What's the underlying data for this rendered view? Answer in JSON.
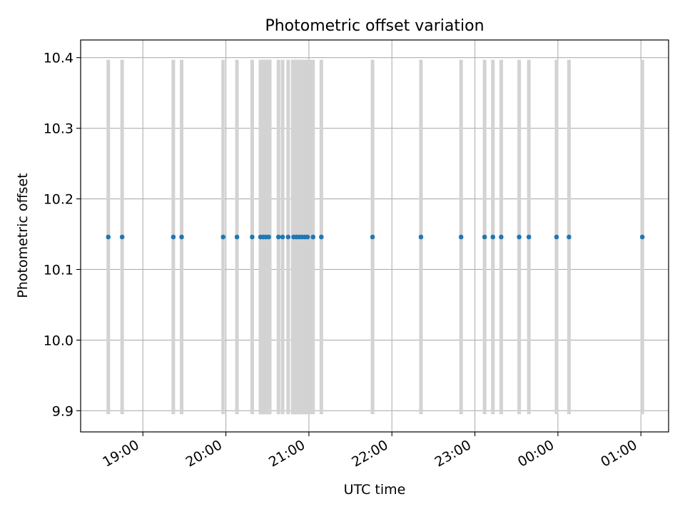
{
  "chart_data": {
    "type": "scatter",
    "title": "Photometric offset variation",
    "xlabel": "UTC time",
    "ylabel": "Photometric offset",
    "xlim": [
      "18:15",
      "25:20"
    ],
    "ylim": [
      9.87,
      10.425
    ],
    "x_ticks": [
      "19:00",
      "20:00",
      "21:00",
      "22:00",
      "23:00",
      "00:00",
      "01:00"
    ],
    "y_ticks": [
      9.9,
      10.0,
      10.1,
      10.2,
      10.3,
      10.4
    ],
    "y_tick_labels": [
      "9.9",
      "10.0",
      "10.1",
      "10.2",
      "10.3",
      "10.4"
    ],
    "grid": true,
    "errorbar_range": [
      9.895,
      10.397
    ],
    "errorbar_color": "#d3d3d3",
    "point_color": "#1f77b4",
    "points": [
      {
        "t": "18:35",
        "y": 10.146
      },
      {
        "t": "18:45",
        "y": 10.146
      },
      {
        "t": "19:22",
        "y": 10.146
      },
      {
        "t": "19:28",
        "y": 10.146
      },
      {
        "t": "19:58",
        "y": 10.146
      },
      {
        "t": "20:08",
        "y": 10.146
      },
      {
        "t": "20:19",
        "y": 10.146
      },
      {
        "t": "20:25",
        "y": 10.146
      },
      {
        "t": "20:27",
        "y": 10.146
      },
      {
        "t": "20:29",
        "y": 10.146
      },
      {
        "t": "20:31",
        "y": 10.146
      },
      {
        "t": "20:38",
        "y": 10.146
      },
      {
        "t": "20:41",
        "y": 10.146
      },
      {
        "t": "20:45",
        "y": 10.146
      },
      {
        "t": "20:49",
        "y": 10.146
      },
      {
        "t": "20:51",
        "y": 10.146
      },
      {
        "t": "20:53",
        "y": 10.146
      },
      {
        "t": "20:55",
        "y": 10.146
      },
      {
        "t": "20:57",
        "y": 10.146
      },
      {
        "t": "20:59",
        "y": 10.146
      },
      {
        "t": "21:03",
        "y": 10.146
      },
      {
        "t": "21:09",
        "y": 10.146
      },
      {
        "t": "21:46",
        "y": 10.146
      },
      {
        "t": "22:21",
        "y": 10.146
      },
      {
        "t": "22:50",
        "y": 10.146
      },
      {
        "t": "23:07",
        "y": 10.146
      },
      {
        "t": "23:13",
        "y": 10.146
      },
      {
        "t": "23:19",
        "y": 10.146
      },
      {
        "t": "23:32",
        "y": 10.146
      },
      {
        "t": "23:39",
        "y": 10.146
      },
      {
        "t": "23:59",
        "y": 10.146
      },
      {
        "t": "24:08",
        "y": 10.146
      },
      {
        "t": "25:01",
        "y": 10.146
      }
    ],
    "bands": [
      {
        "from": "20:24",
        "to": "20:33"
      },
      {
        "from": "20:47",
        "to": "21:02"
      }
    ]
  }
}
